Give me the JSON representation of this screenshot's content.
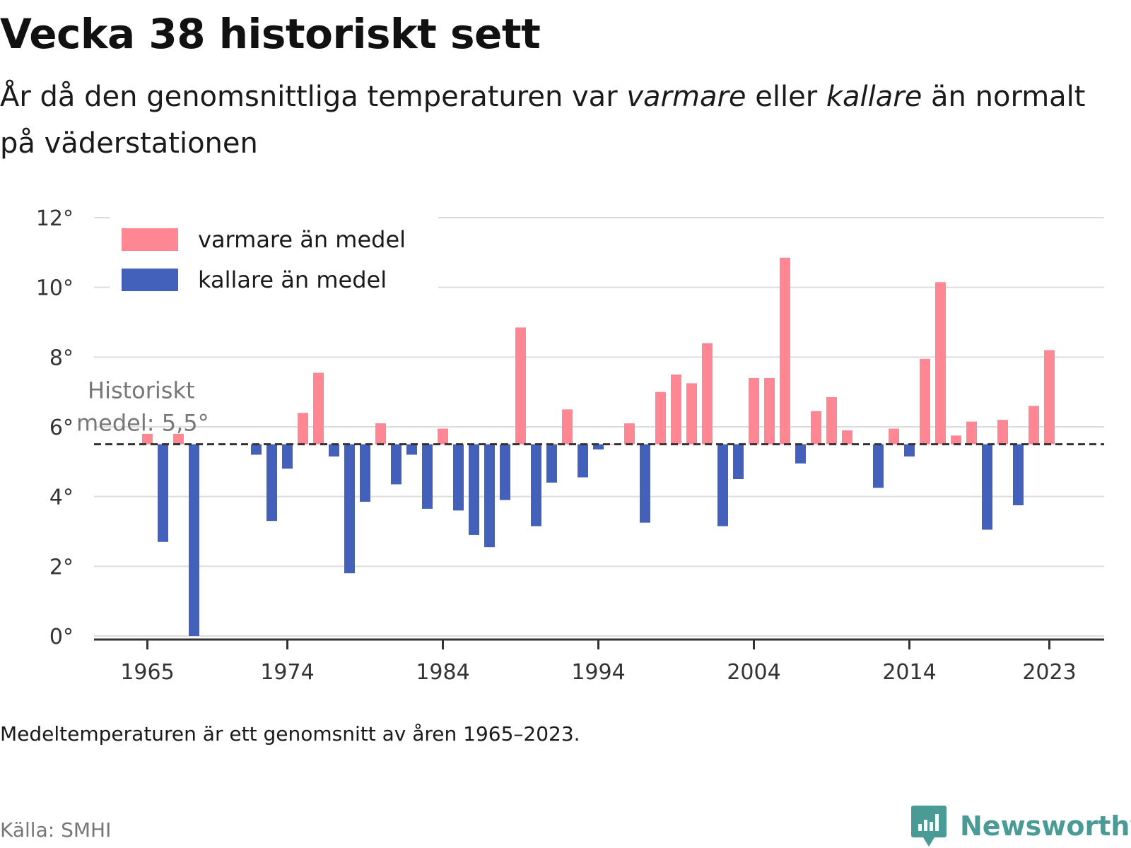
{
  "header": {
    "title": "Vecka 38 historiskt sett",
    "subtitle_pre": "År då den genomsnittliga temperaturen var ",
    "subtitle_warm": "varmare",
    "subtitle_mid": " eller ",
    "subtitle_cold": "kallare",
    "subtitle_post": " än normalt på väderstationen"
  },
  "footer": {
    "note": "Medeltemperaturen är ett genomsnitt av åren 1965–2023.",
    "source": "Källa: SMHI",
    "brand": "Newsworthy"
  },
  "colors": {
    "warm": "#ff8793",
    "cold": "#4361bb",
    "grid": "#dddddd",
    "brand": "#4a9a96"
  },
  "chart_data": {
    "type": "bar",
    "unit": "°",
    "baseline": 5.5,
    "baseline_label_line1": "Historiskt",
    "baseline_label_line2": "medel: 5,5°",
    "ylim": [
      0,
      12
    ],
    "yticks": [
      0,
      2,
      4,
      6,
      8,
      10,
      12
    ],
    "ytick_labels": [
      "0°",
      "2°",
      "4°",
      "6°",
      "8°",
      "10°",
      "12°"
    ],
    "xticks": [
      1965,
      1974,
      1984,
      1994,
      2004,
      2014,
      2023
    ],
    "xtick_labels": [
      "1965",
      "1974",
      "1984",
      "1994",
      "2004",
      "2014",
      "2023"
    ],
    "legend": {
      "placement": "top-left",
      "warm_label": "varmare än medel",
      "cold_label": "kallare än medel"
    },
    "x": [
      1965,
      1966,
      1967,
      1968,
      1969,
      1970,
      1971,
      1972,
      1973,
      1974,
      1975,
      1976,
      1977,
      1978,
      1979,
      1980,
      1981,
      1982,
      1983,
      1984,
      1985,
      1986,
      1987,
      1988,
      1989,
      1990,
      1991,
      1992,
      1993,
      1994,
      1995,
      1996,
      1997,
      1998,
      1999,
      2000,
      2001,
      2002,
      2003,
      2004,
      2005,
      2006,
      2007,
      2008,
      2009,
      2010,
      2011,
      2012,
      2013,
      2014,
      2015,
      2016,
      2017,
      2018,
      2019,
      2020,
      2021,
      2022,
      2023
    ],
    "values": [
      5.8,
      2.7,
      5.8,
      -0.1,
      null,
      null,
      null,
      5.2,
      3.3,
      4.8,
      6.4,
      7.55,
      5.15,
      1.8,
      3.85,
      6.1,
      4.35,
      5.2,
      3.65,
      5.95,
      3.6,
      2.9,
      2.55,
      3.9,
      8.85,
      3.15,
      4.4,
      6.5,
      4.55,
      5.35,
      5.5,
      6.1,
      3.25,
      7.0,
      7.5,
      7.25,
      8.4,
      3.15,
      4.5,
      7.4,
      7.4,
      10.85,
      4.95,
      6.45,
      6.85,
      5.9,
      null,
      4.25,
      5.95,
      5.15,
      7.95,
      10.15,
      5.75,
      6.15,
      3.05,
      6.2,
      3.75,
      6.6,
      8.2
    ]
  }
}
